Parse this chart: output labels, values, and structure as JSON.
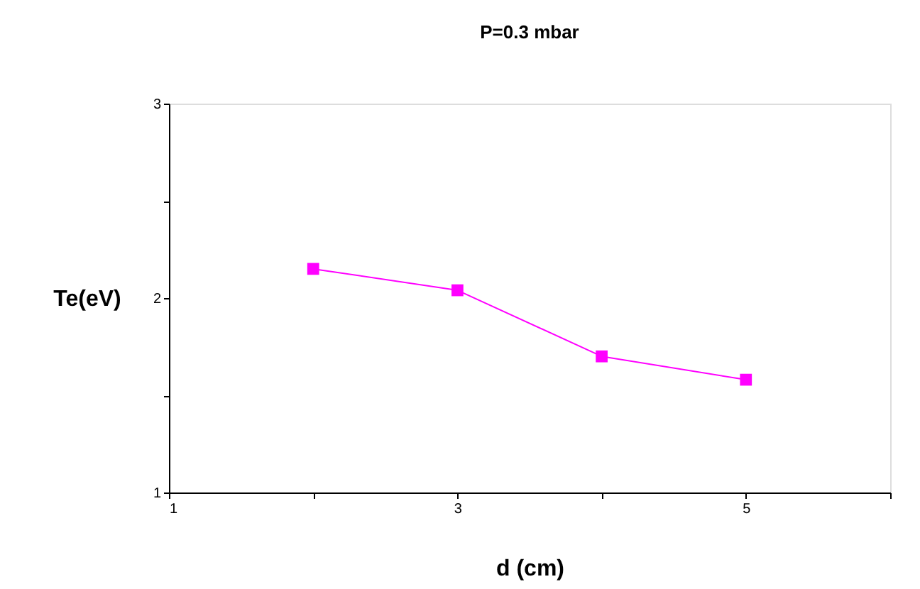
{
  "chart_data": {
    "type": "line",
    "title": "P=0.3 mbar",
    "xlabel": "d (cm)",
    "ylabel": "Te(eV)",
    "x": [
      2,
      3,
      4,
      5
    ],
    "series": [
      {
        "color": "#ff00ff",
        "values": [
          2.15,
          2.04,
          1.7,
          1.58
        ]
      }
    ],
    "xlim": [
      1,
      6
    ],
    "xticks": [
      1,
      {
        "value": 2,
        "label": null
      },
      3,
      {
        "value": 4,
        "label": null
      },
      5,
      {
        "value": 6,
        "label": null
      }
    ],
    "ylim": [
      1,
      3
    ],
    "yticks": [
      1,
      {
        "value": 1.5,
        "label": null
      },
      2,
      {
        "value": 2.5,
        "label": null
      },
      3
    ],
    "marker": "square",
    "line_style": "solid",
    "grid": false
  }
}
